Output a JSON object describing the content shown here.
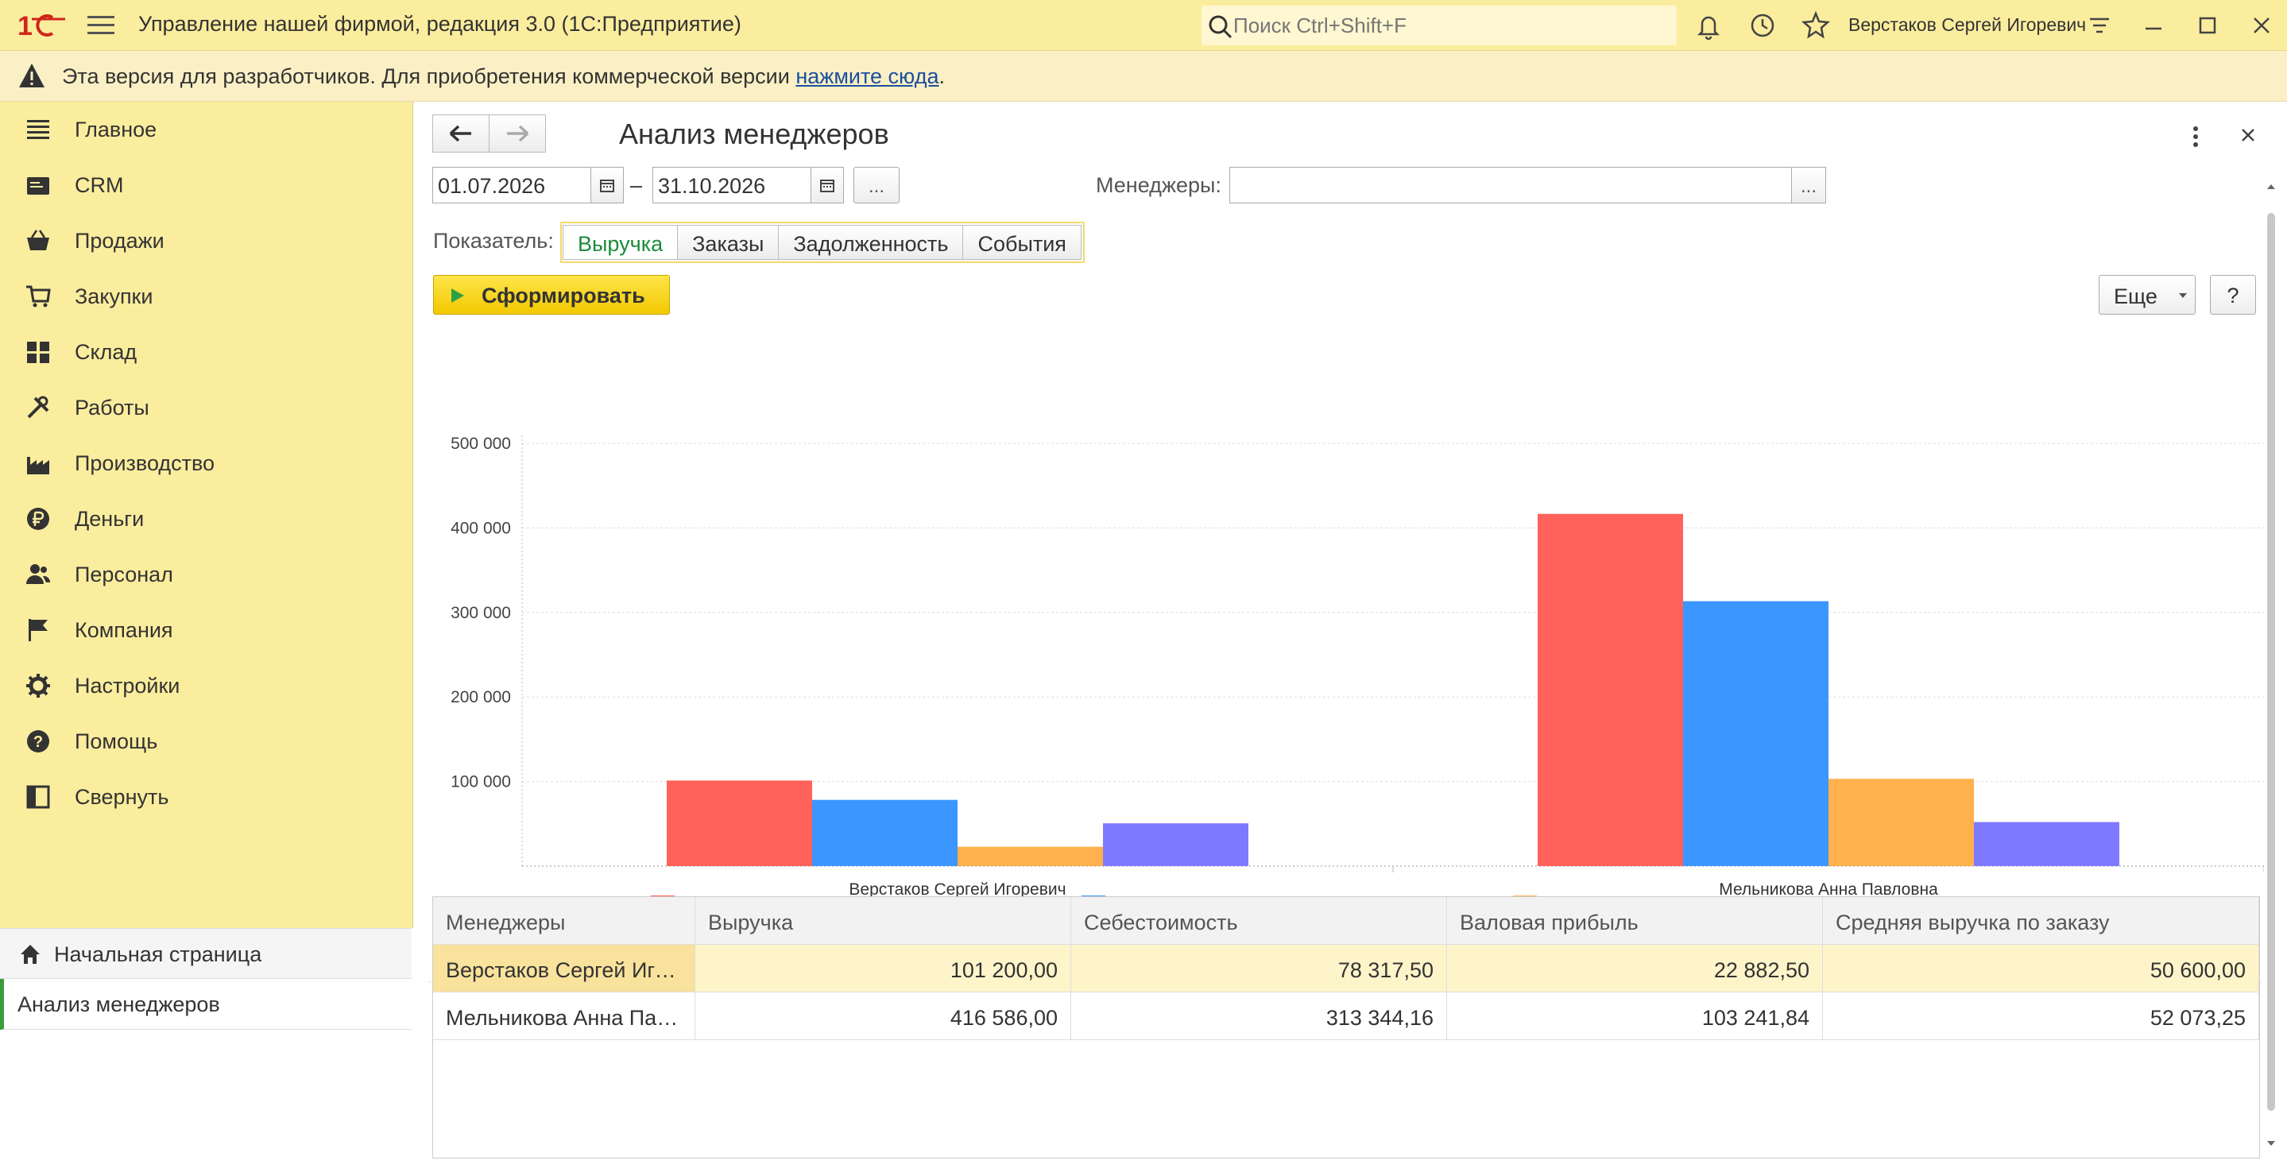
{
  "titlebar": {
    "app_title": "Управление нашей фирмой, редакция 3.0  (1С:Предприятие)",
    "search_placeholder": "Поиск Ctrl+Shift+F",
    "user_name": "Верстаков Сергей Игоревич"
  },
  "devbar": {
    "text": "Эта версия для разработчиков. Для приобретения коммерческой версии ",
    "link": "нажмите сюда",
    "tail": "."
  },
  "sidebar": {
    "items": [
      {
        "label": "Главное",
        "icon": "list-icon"
      },
      {
        "label": "CRM",
        "icon": "crm-icon"
      },
      {
        "label": "Продажи",
        "icon": "basket-icon"
      },
      {
        "label": "Закупки",
        "icon": "cart-icon"
      },
      {
        "label": "Склад",
        "icon": "warehouse-icon"
      },
      {
        "label": "Работы",
        "icon": "tools-icon"
      },
      {
        "label": "Производство",
        "icon": "factory-icon"
      },
      {
        "label": "Деньги",
        "icon": "ruble-icon"
      },
      {
        "label": "Персонал",
        "icon": "people-icon"
      },
      {
        "label": "Компания",
        "icon": "flag-icon"
      },
      {
        "label": "Настройки",
        "icon": "gear-icon"
      },
      {
        "label": "Помощь",
        "icon": "help-icon"
      },
      {
        "label": "Свернуть",
        "icon": "collapse-icon"
      }
    ],
    "home": "Начальная страница",
    "active": "Анализ менеджеров"
  },
  "form": {
    "title": "Анализ менеджеров",
    "date_from": "01.07.2026",
    "date_to": "31.10.2026",
    "dash": "–",
    "ellipsis": "...",
    "managers_label": "Менеджеры:",
    "managers_value": "",
    "indicator_label": "Показатель:",
    "indicators": [
      "Выручка",
      "Заказы",
      "Задолженность",
      "События"
    ],
    "active_indicator": "Выручка",
    "generate": "Сформировать",
    "more": "Еще",
    "help": "?"
  },
  "colors": {
    "revenue": "#ff625a",
    "cost": "#3c96ff",
    "profit": "#ffb14e",
    "avg": "#7f79ff",
    "accent": "#fbed9e"
  },
  "chart_data": {
    "type": "bar",
    "categories": [
      "Верстаков Сергей Игоревич",
      "Мельникова Анна Павловна"
    ],
    "series": [
      {
        "name": "Выручка",
        "values": [
          101200.0,
          416586.0
        ]
      },
      {
        "name": "Себестоимость",
        "values": [
          78317.5,
          313344.16
        ]
      },
      {
        "name": "Валовая прибыль",
        "values": [
          22882.5,
          103241.84
        ]
      },
      {
        "name": "Средняя выручка по заказу",
        "values": [
          50600.0,
          52073.25
        ]
      }
    ],
    "yticks": [
      "500 000",
      "400 000",
      "300 000",
      "200 000",
      "100 000"
    ],
    "ylim": [
      0,
      500000
    ],
    "grid": true,
    "legend": "bottom"
  },
  "table": {
    "headers": [
      "Менеджеры",
      "Выручка",
      "Себестоимость",
      "Валовая прибыль",
      "Средняя выручка по заказу"
    ],
    "rows": [
      [
        "Верстаков Сергей Игоревич",
        "101 200,00",
        "78 317,50",
        "22 882,50",
        "50 600,00"
      ],
      [
        "Мельникова Анна Павловна",
        "416 586,00",
        "313 344,16",
        "103 241,84",
        "52 073,25"
      ]
    ]
  }
}
